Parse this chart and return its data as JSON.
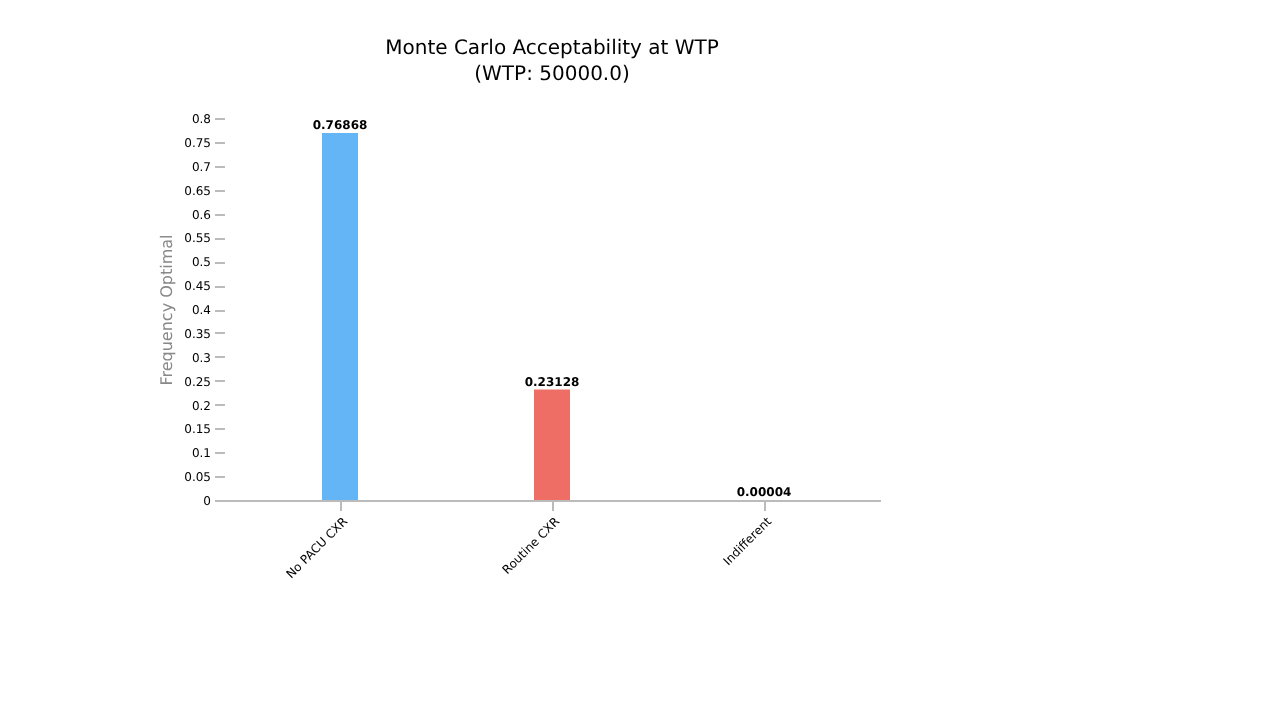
{
  "chart_data": {
    "type": "bar",
    "title": "Monte Carlo Acceptability at WTP",
    "subtitle": "(WTP: 50000.0)",
    "ylabel": "Frequency Optimal",
    "categories": [
      "No PACU CXR",
      "Routine CXR",
      "Indifferent"
    ],
    "values": [
      0.76868,
      0.23128,
      4e-05
    ],
    "colors": [
      "#64b5f6",
      "#ee6e66",
      "#f3efc4"
    ],
    "ylim": [
      0,
      0.8
    ],
    "yticks": [
      0,
      0.05,
      0.1,
      0.15,
      0.2,
      0.25,
      0.3,
      0.35,
      0.4,
      0.45,
      0.5,
      0.55,
      0.6,
      0.65,
      0.7,
      0.75,
      0.8
    ],
    "value_labels": [
      "0.76868",
      "0.23128",
      "0.00004"
    ],
    "grid": false
  }
}
